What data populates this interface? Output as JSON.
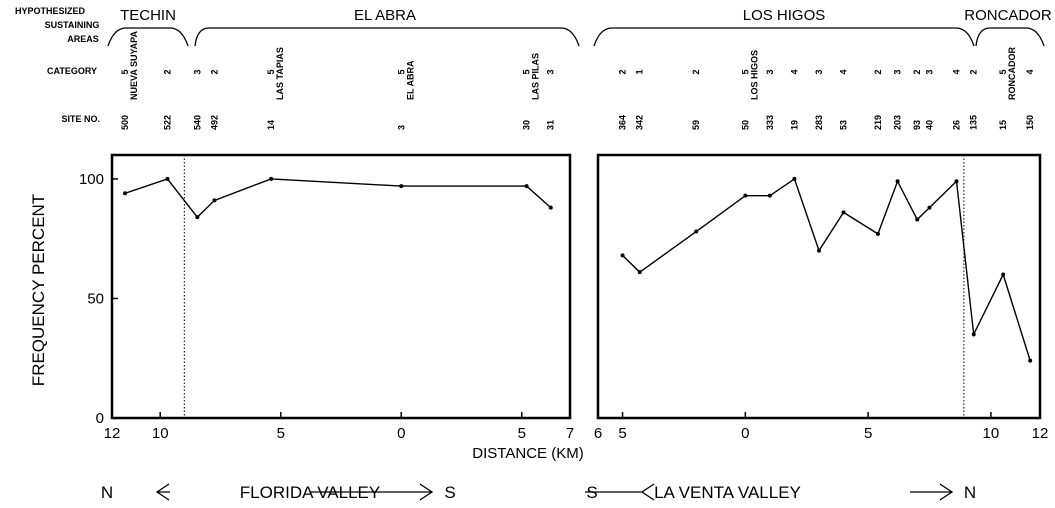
{
  "chart_data": [
    {
      "type": "line",
      "valley": "FLORIDA VALLEY",
      "from": "N",
      "to": "S",
      "areas": [
        "TECHIN",
        "EL ABRA"
      ],
      "x": [
        -11.46,
        -9.7,
        -8.46,
        -7.75,
        -5.4,
        0,
        5.2,
        6.2
      ],
      "values": [
        94,
        100,
        84,
        91,
        100,
        97,
        97,
        88
      ],
      "sites": [
        500,
        522,
        540,
        492,
        14,
        3,
        30,
        31
      ],
      "site_names": [
        "NUEVA SUYAPA",
        null,
        null,
        null,
        "LAS TAPIAS",
        "EL ABRA",
        "LAS PILAS",
        null
      ],
      "site_categories": [
        5,
        2,
        3,
        2,
        5,
        5,
        5,
        3
      ],
      "divider_x": -9.0,
      "xlim": [
        -12,
        7
      ],
      "xticks": [
        {
          "value": -12,
          "label": "12"
        },
        {
          "value": -10,
          "label": "10"
        },
        {
          "value": -5,
          "label": "5"
        },
        0,
        5,
        7
      ],
      "ylim": [
        0,
        110
      ],
      "yticks": [
        0,
        50,
        100
      ]
    },
    {
      "type": "line",
      "valley": "LA VENTA VALLEY",
      "from": "S",
      "to": "N",
      "areas": [
        "LOS HIGOS",
        "RONCADOR"
      ],
      "x": [
        -5,
        -4.3,
        -2,
        0,
        1,
        2,
        3,
        4,
        5.4,
        6.2,
        7,
        7.5,
        8.6,
        9.3,
        10.5,
        11.6
      ],
      "values": [
        68,
        61,
        78,
        93,
        93,
        100,
        70,
        86,
        77,
        99,
        83,
        88,
        99,
        35,
        60,
        24
      ],
      "sites": [
        364,
        342,
        59,
        50,
        333,
        19,
        283,
        53,
        219,
        203,
        93,
        40,
        26,
        135,
        15,
        150
      ],
      "site_names": [
        null,
        null,
        null,
        "LOS HIGOS",
        null,
        null,
        null,
        null,
        null,
        null,
        null,
        null,
        null,
        null,
        "RONCADOR",
        null
      ],
      "site_categories": [
        2,
        1,
        2,
        5,
        3,
        4,
        3,
        4,
        2,
        3,
        2,
        3,
        4,
        2,
        5,
        4
      ],
      "divider_x": 8.9,
      "xlim": [
        -6,
        12
      ],
      "xticks": [
        {
          "value": -6,
          "label": "6"
        },
        {
          "value": -5,
          "label": "5"
        },
        0,
        5,
        10,
        12
      ],
      "ylim": [
        0,
        110
      ]
    }
  ],
  "area_label": [
    "HYPOTHESIZED",
    "SUSTAINING",
    "AREAS"
  ],
  "category_label": "CATEGORY",
  "site_label": "SITE NO.",
  "y_label": "FREQUENCY PERCENT",
  "x_label": "DISTANCE (KM)"
}
